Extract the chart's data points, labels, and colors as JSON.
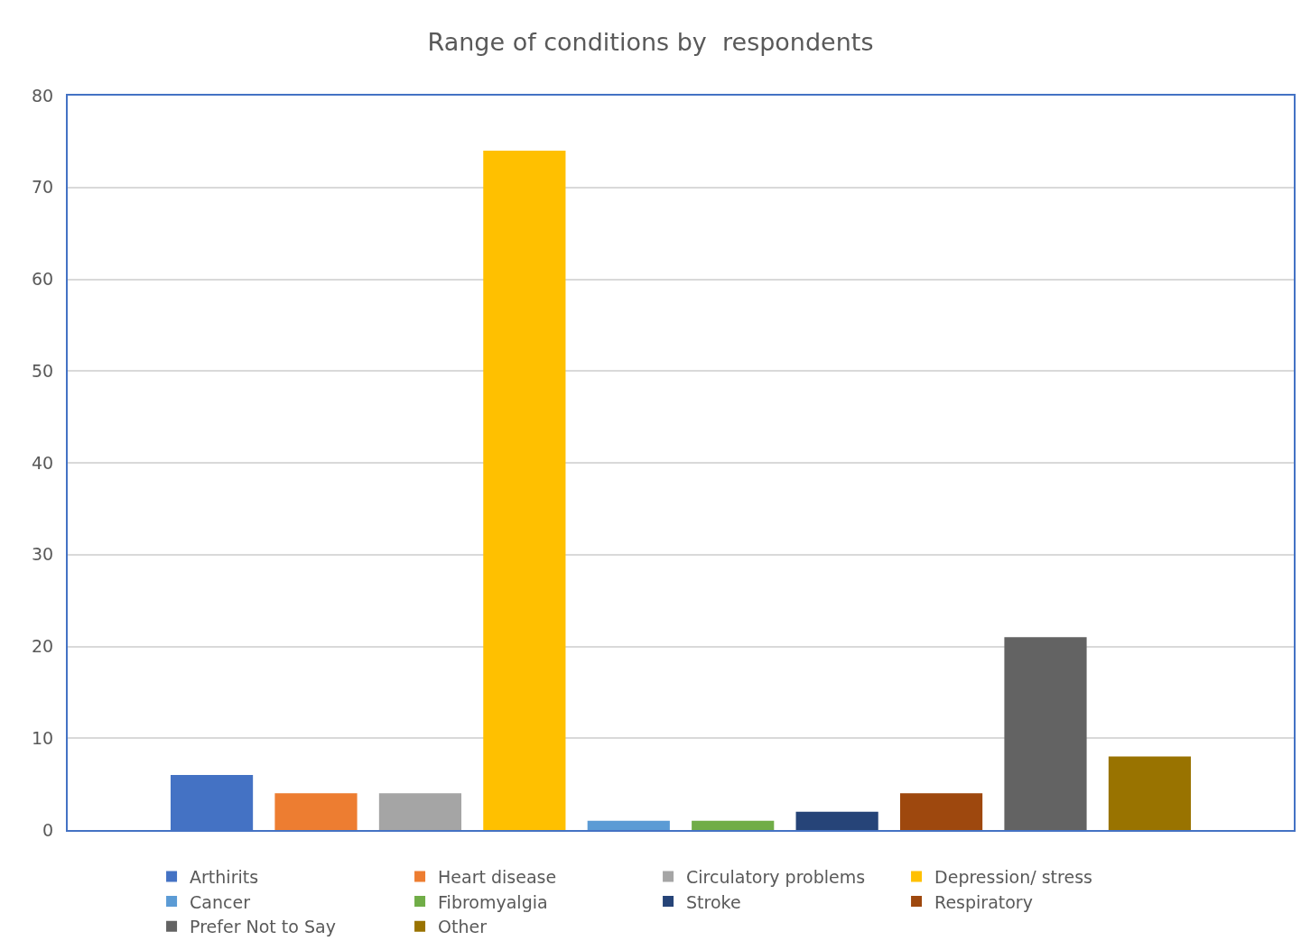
{
  "chart_data": {
    "type": "bar",
    "title": "Range of conditions by  respondents",
    "categories": [
      null
    ],
    "series": [
      {
        "name": "Arthirits",
        "color": "#4472c4",
        "values": [
          6
        ]
      },
      {
        "name": "Heart disease",
        "color": "#ed7d31",
        "values": [
          4
        ]
      },
      {
        "name": "Circulatory problems",
        "color": "#a5a5a5",
        "values": [
          4
        ]
      },
      {
        "name": "Depression/ stress",
        "color": "#ffc000",
        "values": [
          74
        ]
      },
      {
        "name": "Cancer",
        "color": "#5b9bd5",
        "values": [
          1
        ]
      },
      {
        "name": "Fibromyalgia",
        "color": "#70ad47",
        "values": [
          1
        ]
      },
      {
        "name": "Stroke",
        "color": "#264478",
        "values": [
          2
        ]
      },
      {
        "name": "Respiratory",
        "color": "#9e480e",
        "values": [
          4
        ]
      },
      {
        "name": "Prefer Not to Say",
        "color": "#636363",
        "values": [
          21
        ]
      },
      {
        "name": "Other",
        "color": "#997300",
        "values": [
          8
        ]
      }
    ],
    "ylim": [
      0,
      80
    ],
    "yticks": [
      0,
      10,
      20,
      30,
      40,
      50,
      60,
      70,
      80
    ],
    "grid": "y",
    "legend": "bottom"
  }
}
